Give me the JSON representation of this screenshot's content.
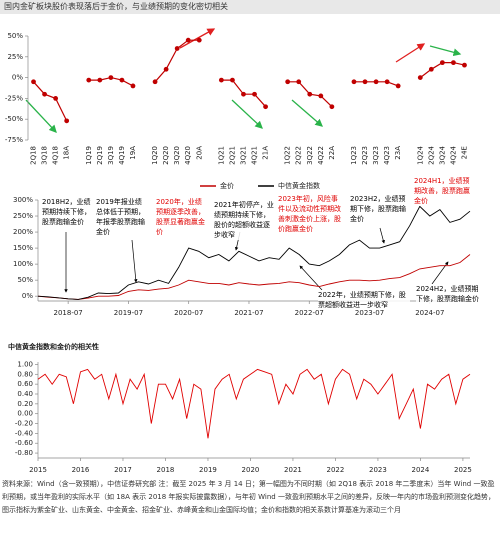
{
  "title": "国内金矿板块股价表现落后于金价，与业绩预期的变化密切相关",
  "chart_data": [
    {
      "type": "line",
      "markers": true,
      "color": "#c00000",
      "categories": [
        "2Q18",
        "3Q18",
        "4Q18",
        "18A",
        null,
        "1Q19",
        "2Q19",
        "3Q19",
        "4Q19",
        "19A",
        null,
        "1Q20",
        "2Q20",
        "3Q20",
        "4Q20",
        "20A",
        null,
        "1Q21",
        "2Q21",
        "3Q21",
        "4Q21",
        "21A",
        null,
        "1Q22",
        "2Q22",
        "3Q22",
        "4Q22",
        "22A",
        null,
        "1Q23",
        "2Q23",
        "3Q23",
        "4Q23",
        "23A",
        null,
        "1Q24",
        "2Q24",
        "3Q24",
        "4Q24",
        "24E"
      ],
      "values": [
        -5,
        -20,
        -25,
        -52,
        null,
        -3,
        -3,
        0,
        -3,
        -10,
        null,
        -5,
        10,
        35,
        45,
        45,
        null,
        -3,
        -3,
        -20,
        -20,
        -35,
        null,
        -5,
        -5,
        -20,
        -22,
        -35,
        null,
        -5,
        -5,
        -5,
        -5,
        -10,
        null,
        0,
        10,
        18,
        18,
        15
      ],
      "ylim": [
        -75,
        50
      ],
      "yticks": [
        {
          "value": -75,
          "label": "-75%"
        },
        {
          "value": -50,
          "label": "-50%"
        },
        {
          "value": -25,
          "label": "-25%"
        },
        {
          "value": 0,
          "label": "0%"
        },
        {
          "value": 25,
          "label": "25%"
        },
        {
          "value": 50,
          "label": "50%"
        }
      ]
    },
    {
      "type": "line",
      "x": [
        "2018-01",
        "2018-03",
        "2018-05",
        "2018-07",
        "2018-09",
        "2018-11",
        "2019-01",
        "2019-03",
        "2019-05",
        "2019-07",
        "2019-09",
        "2019-11",
        "2020-01",
        "2020-03",
        "2020-05",
        "2020-07",
        "2020-09",
        "2020-11",
        "2021-01",
        "2021-03",
        "2021-05",
        "2021-07",
        "2021-09",
        "2021-11",
        "2022-01",
        "2022-03",
        "2022-05",
        "2022-07",
        "2022-09",
        "2022-11",
        "2023-01",
        "2023-03",
        "2023-05",
        "2023-07",
        "2023-09",
        "2023-11",
        "2024-01",
        "2024-03",
        "2024-05",
        "2024-07",
        "2024-09",
        "2024-11",
        "2025-01",
        "2025-03"
      ],
      "series": [
        {
          "name": "金价",
          "color": "#c00000",
          "values": [
            0,
            -3,
            -5,
            -8,
            -10,
            -6,
            0,
            0,
            2,
            15,
            20,
            18,
            22,
            25,
            35,
            50,
            45,
            40,
            40,
            35,
            42,
            38,
            35,
            38,
            40,
            45,
            42,
            35,
            30,
            38,
            45,
            50,
            50,
            48,
            50,
            55,
            58,
            70,
            85,
            90,
            95,
            95,
            105,
            130
          ]
        },
        {
          "name": "中信黄金指数",
          "color": "#000000",
          "values": [
            0,
            -2,
            -5,
            -8,
            -10,
            -3,
            10,
            8,
            10,
            35,
            45,
            38,
            50,
            40,
            90,
            150,
            140,
            120,
            130,
            110,
            140,
            125,
            110,
            120,
            115,
            150,
            130,
            100,
            95,
            110,
            130,
            160,
            175,
            150,
            150,
            160,
            170,
            220,
            280,
            250,
            270,
            230,
            240,
            265
          ]
        }
      ],
      "xlim": [
        "2018-01",
        "2025-03"
      ],
      "xticks": [
        "2018-07",
        "2019-07",
        "2020-07",
        "2021-07",
        "2022-07",
        "2023-07",
        "2024-07"
      ],
      "ylim": [
        -15,
        300
      ],
      "yticks": [
        {
          "value": 0,
          "label": "0%"
        },
        {
          "value": 50,
          "label": "50%"
        },
        {
          "value": 100,
          "label": "100%"
        },
        {
          "value": 150,
          "label": "150%"
        },
        {
          "value": 200,
          "label": "200%"
        },
        {
          "value": 250,
          "label": "250%"
        },
        {
          "value": 300,
          "label": "300%"
        }
      ],
      "annotations": [
        {
          "text": "2018H2，业绩预期持续下修，股票跑输金价",
          "color": "#000000"
        },
        {
          "text": "2019年报业绩总体低于预期，年报季股票跑输金价",
          "color": "#000000"
        },
        {
          "text": "2020年，业绩预期逐季改善，股票显著跑赢金价",
          "color": "#e00000"
        },
        {
          "text": "2021年初停产，业绩预期持续下修，股价的超额收益逐步收窄",
          "color": "#000000"
        },
        {
          "text": "2023年初，风险事件以及流动性预期改善刺激金价上涨，股价跑赢金价",
          "color": "#e00000"
        },
        {
          "text": "2023H2，业绩预期下修，股票跑输金价",
          "color": "#000000"
        },
        {
          "text": "2024H1，业绩预期改善，股票跑赢金价",
          "color": "#e00000"
        },
        {
          "text": "2022年，业绩预期下修，股票超额收益进一步收窄",
          "color": "#000000"
        },
        {
          "text": "2024H2，业绩预期下修，股票跑输金价",
          "color": "#000000"
        }
      ]
    },
    {
      "type": "line",
      "title": "中信黄金指数和金价的相关性",
      "color": "#e00000",
      "x": [
        "2015-01",
        "2015-03",
        "2015-05",
        "2015-07",
        "2015-09",
        "2015-11",
        "2016-01",
        "2016-03",
        "2016-05",
        "2016-07",
        "2016-09",
        "2016-11",
        "2017-01",
        "2017-03",
        "2017-05",
        "2017-07",
        "2017-09",
        "2017-11",
        "2018-01",
        "2018-03",
        "2018-05",
        "2018-07",
        "2018-09",
        "2018-11",
        "2019-01",
        "2019-03",
        "2019-05",
        "2019-07",
        "2019-09",
        "2019-11",
        "2020-01",
        "2020-03",
        "2020-05",
        "2020-07",
        "2020-09",
        "2020-11",
        "2021-01",
        "2021-03",
        "2021-05",
        "2021-07",
        "2021-09",
        "2021-11",
        "2022-01",
        "2022-03",
        "2022-05",
        "2022-07",
        "2022-09",
        "2022-11",
        "2023-01",
        "2023-03",
        "2023-05",
        "2023-07",
        "2023-09",
        "2023-11",
        "2024-01",
        "2024-03",
        "2024-05",
        "2024-07",
        "2024-09",
        "2024-11",
        "2025-01",
        "2025-03"
      ],
      "values": [
        0.7,
        0.8,
        0.6,
        0.8,
        0.75,
        0.2,
        0.85,
        0.9,
        0.7,
        0.8,
        0.3,
        0.8,
        0.2,
        0.7,
        0.5,
        0.8,
        -0.2,
        0.6,
        0.6,
        0.3,
        0.7,
        -0.1,
        0.6,
        0.5,
        -0.5,
        0.5,
        0.7,
        0.8,
        0.3,
        0.7,
        0.8,
        0.9,
        0.85,
        0.8,
        0.2,
        0.6,
        0.4,
        0.8,
        0.9,
        0.7,
        0.8,
        0.2,
        0.7,
        0.9,
        0.8,
        0.3,
        0.7,
        0.6,
        0.4,
        0.6,
        0.8,
        -0.1,
        0.2,
        0.5,
        -0.3,
        0.6,
        0.5,
        0.7,
        0.8,
        0.2,
        0.7,
        0.8
      ],
      "xlim": [
        "2015-01",
        "2025-03"
      ],
      "xticks": [
        2015,
        2016,
        2017,
        2018,
        2019,
        2020,
        2021,
        2022,
        2023,
        2024,
        2025
      ],
      "ylim": [
        -0.9,
        1.05
      ],
      "yticks": [
        {
          "value": 1,
          "label": "1.00"
        },
        {
          "value": 0.8,
          "label": "0.80"
        },
        {
          "value": 0.6,
          "label": "0.60"
        },
        {
          "value": 0.4,
          "label": "0.40"
        },
        {
          "value": 0.2,
          "label": "0.20"
        },
        {
          "value": 0,
          "label": "0.00"
        },
        {
          "value": -0.2,
          "label": "-0.20"
        },
        {
          "value": -0.4,
          "label": "-0.40"
        },
        {
          "value": -0.6,
          "label": "-0.60"
        },
        {
          "value": -0.8,
          "label": "-0.80"
        }
      ]
    }
  ],
  "footer": "资料来源：Wind（含一致预期），中信证券研究部  注：截至 2025 年 3 月 14 日；第一幅图为不同时期（如 2Q18 表示 2018 年二季度末）当年 Wind 一致盈利预期，或当年盈利的实际水平（如 18A 表示 2018 年报实际披露数据），与年初 Wind 一致盈利预期水平之间的差异，反映一年内的市场盈利预测变化趋势，图示指标为紫金矿业、山东黄金、中金黄金、招金矿业、赤峰黄金和山金国际均值；金价和指数的相关系数计算基准为滚动三个月"
}
